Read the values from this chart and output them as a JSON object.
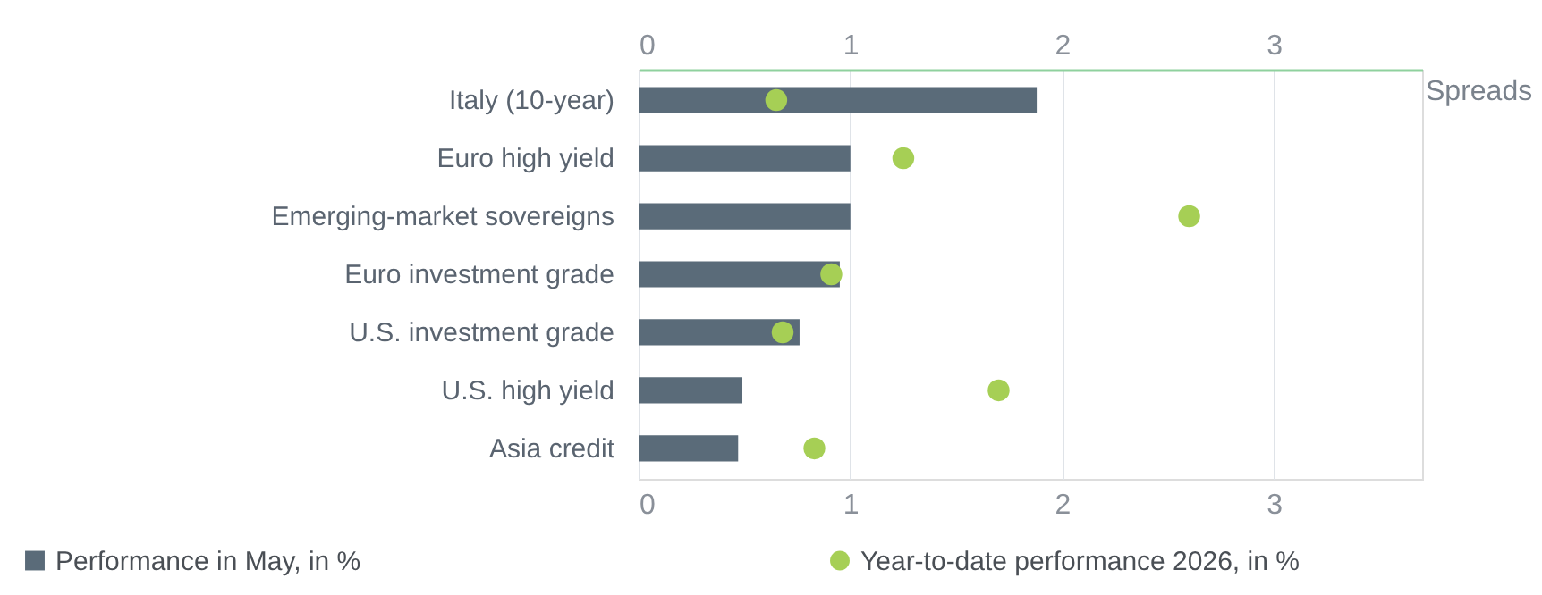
{
  "chart_data": {
    "type": "bar",
    "orientation": "horizontal",
    "categories": [
      "Italy (10-year)",
      "Euro high yield",
      "Emerging-market sovereigns",
      "Euro investment grade",
      "U.S. investment grade",
      "U.S. high yield",
      "Asia credit"
    ],
    "series": [
      {
        "name": "Performance in May, in %",
        "color": "#5a6b79",
        "values": [
          1.88,
          1.0,
          1.0,
          0.95,
          0.76,
          0.49,
          0.47
        ]
      },
      {
        "name": "Year-to-date performance 2026, in %",
        "type": "scatter",
        "color": "#a6cf55",
        "values": [
          0.65,
          1.25,
          2.6,
          0.91,
          0.68,
          1.7,
          0.83
        ]
      }
    ],
    "xlim": [
      0,
      3.7
    ],
    "xticks": [
      0,
      1,
      2,
      3
    ],
    "x2lim": [
      0,
      3.7
    ],
    "x2ticks": [
      0,
      1,
      2,
      3
    ],
    "grid": "x",
    "legend": "bottom",
    "marker": "circle",
    "annotations": [
      "Spreads"
    ]
  }
}
